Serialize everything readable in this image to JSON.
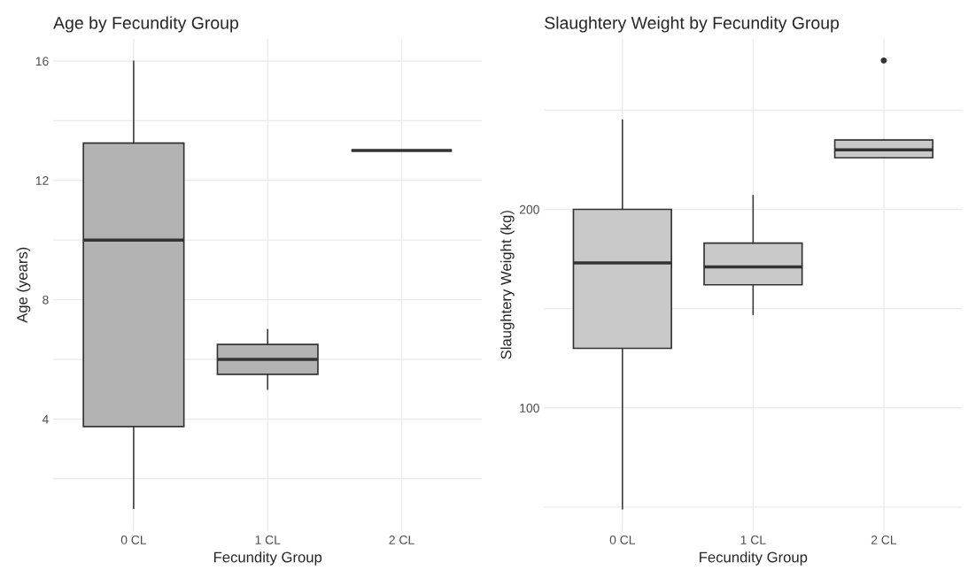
{
  "chart_data": [
    {
      "type": "box",
      "title": "Age by Fecundity Group",
      "xlabel": "Fecundity Group",
      "ylabel": "Age (years)",
      "categories": [
        "0 CL",
        "1 CL",
        "2 CL"
      ],
      "color": "#b3b3b3",
      "boxes": [
        {
          "low": 1,
          "q1": 3.75,
          "median": 10,
          "q3": 13.25,
          "high": 16
        },
        {
          "low": 5,
          "q1": 5.5,
          "median": 6,
          "q3": 6.5,
          "high": 7
        },
        {
          "low": 13,
          "q1": 13,
          "median": 13,
          "q3": 13,
          "high": 13
        }
      ],
      "ylim": [
        0.25,
        16.75
      ],
      "yticks": [
        {
          "value": 2,
          "label": null
        },
        4,
        {
          "value": 6,
          "label": null
        },
        8,
        {
          "value": 10,
          "label": null
        },
        12,
        {
          "value": 14,
          "label": null
        },
        16
      ],
      "grid": true
    },
    {
      "type": "box",
      "title": "Slaughtery Weight by Fecundity Group",
      "xlabel": "Fecundity Group",
      "ylabel": "Slaughtery Weight (kg)",
      "categories": [
        "0 CL",
        "1 CL",
        "2 CL"
      ],
      "color": "#c9c9c9",
      "boxes": [
        {
          "low": 49,
          "q1": 130,
          "median": 173,
          "q3": 200,
          "high": 245
        },
        {
          "low": 147,
          "q1": 162,
          "median": 171,
          "q3": 183,
          "high": 207
        },
        {
          "low": 226,
          "q1": 226,
          "median": 230,
          "q3": 235,
          "high": 235,
          "outliers": [
            275
          ]
        }
      ],
      "ylim": [
        38,
        286
      ],
      "yticks": [
        {
          "value": 50,
          "label": null
        },
        100,
        {
          "value": 150,
          "label": null
        },
        200,
        {
          "value": 250,
          "label": null
        }
      ],
      "grid": true
    }
  ]
}
